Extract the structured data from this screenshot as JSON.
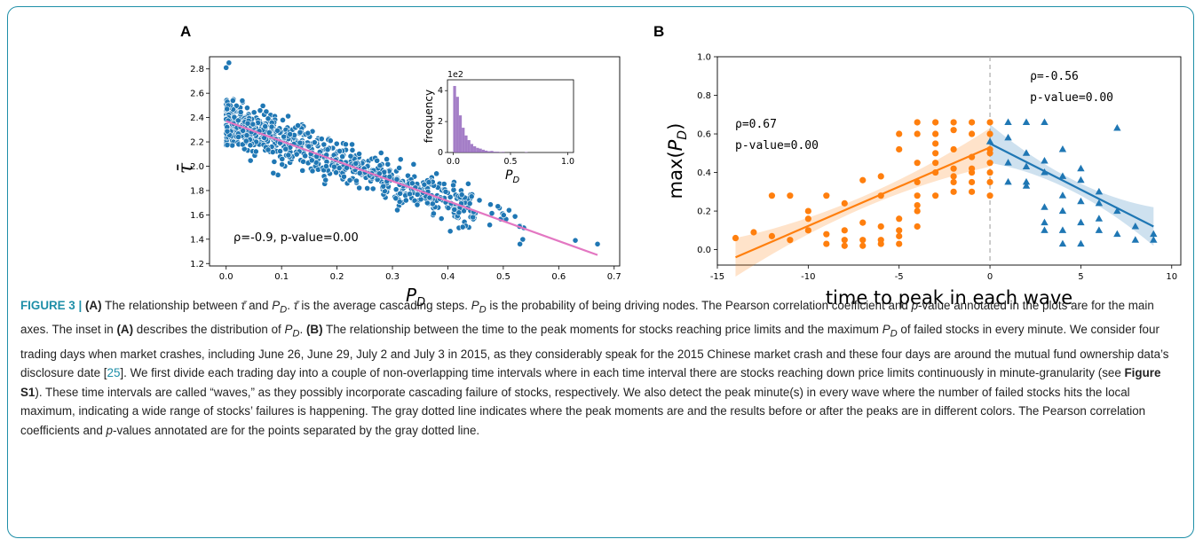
{
  "panels": {
    "a_letter": "A",
    "b_letter": "B"
  },
  "chart_data": [
    {
      "type": "scatter",
      "panel": "A",
      "xlabel": "P_D",
      "ylabel": "τ̄",
      "xlim": [
        -0.03,
        0.71
      ],
      "ylim": [
        1.18,
        2.9
      ],
      "xticks": [
        "0.0",
        "0.1",
        "0.2",
        "0.3",
        "0.4",
        "0.5",
        "0.6",
        "0.7"
      ],
      "yticks": [
        "1.2",
        "1.4",
        "1.6",
        "1.8",
        "2.0",
        "2.2",
        "2.4",
        "2.6",
        "2.8"
      ],
      "annotation": "ρ=-0.9, p-value=0.00",
      "point_color": "#1f77b4",
      "fit_color": "#e377c2",
      "fit_line": {
        "x": [
          0.0,
          0.67
        ],
        "y": [
          2.37,
          1.27
        ]
      },
      "outliers": {
        "x": [
          0.005,
          0.53,
          0.63,
          0.67,
          0.0
        ],
        "y": [
          2.85,
          1.36,
          1.39,
          1.36,
          2.81
        ]
      },
      "inset": {
        "type": "bar",
        "xlabel": "P_D",
        "ylabel": "frequency",
        "scale_label": "1e2",
        "xticks": [
          "0.0",
          "0.5",
          "1.0"
        ],
        "yticks": [
          "0",
          "2",
          "4"
        ],
        "xlim": [
          -0.05,
          1.05
        ],
        "ylim": [
          0,
          4.7
        ],
        "bar_color": "#9467bd",
        "bin_width": 0.025,
        "bin_start": 0.0,
        "values": [
          4.3,
          3.6,
          2.4,
          1.6,
          1.1,
          0.8,
          0.55,
          0.4,
          0.3,
          0.25,
          0.18,
          0.12,
          0.08,
          0.1,
          0.05,
          0.05,
          0.02,
          0.04,
          0.0,
          0.0,
          0.0,
          0.0,
          0.0,
          0.0,
          0.0,
          0.03,
          0.0,
          0.0
        ]
      }
    },
    {
      "type": "scatter",
      "panel": "B",
      "xlabel": "time to peak in each wave",
      "ylabel": "max(P_D)",
      "xlim": [
        -15,
        10.5
      ],
      "ylim": [
        -0.08,
        1.0
      ],
      "xticks": [
        "-15",
        "-10",
        "-5",
        "0",
        "5",
        "10"
      ],
      "xtick_values": [
        -15,
        -10,
        -5,
        0,
        5,
        10
      ],
      "yticks": [
        "0.0",
        "0.2",
        "0.4",
        "0.6",
        "0.8",
        "1.0"
      ],
      "ytick_values": [
        0.0,
        0.2,
        0.4,
        0.6,
        0.8,
        1.0
      ],
      "peak_line_x": 0,
      "series": [
        {
          "color": "#ff7f0e",
          "marker": "circle",
          "annotation_rho": "ρ=0.67",
          "annotation_p": "p-value=0.00",
          "fit_line": {
            "x": [
              -14,
              0
            ],
            "y": [
              -0.04,
              0.53
            ]
          },
          "x": [
            -14,
            -13,
            -12,
            -12,
            -11,
            -11,
            -10,
            -10,
            -10,
            -9,
            -9,
            -9,
            -8,
            -8,
            -8,
            -8,
            -7,
            -7,
            -7,
            -7,
            -6,
            -6,
            -6,
            -6,
            -6,
            -5,
            -5,
            -5,
            -5,
            -5,
            -5,
            -4,
            -4,
            -4,
            -4,
            -4,
            -4,
            -4,
            -4,
            -3,
            -3,
            -3,
            -3,
            -3,
            -3,
            -3,
            -2,
            -2,
            -2,
            -2,
            -2,
            -2,
            -2,
            -1,
            -1,
            -1,
            -1,
            -1,
            -1,
            -1,
            0,
            0,
            0,
            0,
            0,
            0,
            0,
            0
          ],
          "y": [
            0.06,
            0.09,
            0.28,
            0.07,
            0.28,
            0.05,
            0.16,
            0.1,
            0.2,
            0.03,
            0.08,
            0.28,
            0.1,
            0.02,
            0.05,
            0.24,
            0.02,
            0.36,
            0.05,
            0.14,
            0.03,
            0.12,
            0.05,
            0.38,
            0.28,
            0.52,
            0.6,
            0.07,
            0.03,
            0.16,
            0.1,
            0.66,
            0.6,
            0.45,
            0.35,
            0.2,
            0.12,
            0.23,
            0.28,
            0.66,
            0.6,
            0.55,
            0.45,
            0.4,
            0.28,
            0.5,
            0.66,
            0.62,
            0.52,
            0.42,
            0.38,
            0.3,
            0.35,
            0.66,
            0.6,
            0.48,
            0.4,
            0.3,
            0.35,
            0.42,
            0.66,
            0.6,
            0.5,
            0.45,
            0.35,
            0.28,
            0.4,
            0.52
          ]
        },
        {
          "color": "#1f77b4",
          "marker": "triangle",
          "annotation_rho": "ρ=-0.56",
          "annotation_p": "p-value=0.00",
          "fit_line": {
            "x": [
              0,
              9
            ],
            "y": [
              0.55,
              0.12
            ]
          },
          "x": [
            0,
            1,
            1,
            1,
            1,
            2,
            2,
            2,
            2,
            2,
            3,
            3,
            3,
            3,
            3,
            3,
            4,
            4,
            4,
            4,
            4,
            4,
            5,
            5,
            5,
            5,
            5,
            6,
            6,
            6,
            6,
            7,
            7,
            7,
            8,
            8,
            9,
            9
          ],
          "y": [
            0.56,
            0.66,
            0.58,
            0.45,
            0.35,
            0.66,
            0.5,
            0.35,
            0.33,
            0.43,
            0.66,
            0.46,
            0.4,
            0.22,
            0.14,
            0.1,
            0.52,
            0.38,
            0.28,
            0.2,
            0.1,
            0.03,
            0.42,
            0.36,
            0.25,
            0.14,
            0.03,
            0.3,
            0.24,
            0.16,
            0.1,
            0.63,
            0.2,
            0.08,
            0.12,
            0.05,
            0.08,
            0.05
          ]
        }
      ]
    }
  ],
  "caption": {
    "fig_label": "FIGURE 3 | ",
    "a1": "(A)",
    "t1": " The relationship between ",
    "tau": "τ̄",
    "t2": " and ",
    "pd1": "P",
    "sub1": "D",
    "t3": ". ",
    "tau2": "τ̄",
    "t4": " is the average cascading steps. ",
    "pd2": "P",
    "sub2": "D",
    "t5": " is the probability of being driving nodes. The Pearson correlation coefficient and ",
    "p1": "p",
    "t6": "-value annotated in the plots are for the main axes. The inset in ",
    "a2": "(A)",
    "t7": " describes the distribution of ",
    "pd3": "P",
    "sub3": "D",
    "t8": ". ",
    "b1": "(B)",
    "t9": " The relationship between the time to the peak moments for stocks reaching price limits and the maximum ",
    "pd4": "P",
    "sub4": "D",
    "t10": " of failed stocks in every minute. We consider four trading days when market crashes, including June 26, June 29, July 2 and July 3 in 2015, as they considerably speak for the 2015 Chinese market crash and these four days are around the mutual fund ownership data’s disclosure date [",
    "ref": "25",
    "t11": "]. We first divide each trading day into a couple of non-overlapping time intervals where in each time interval there are stocks reaching down price limits continuously in minute-granularity (see ",
    "figs1": "Figure S1",
    "t12": "). These time intervals are called “waves,” as they possibly incorporate cascading failure of stocks, respectively. We also detect the peak minute(s) in every wave where the number of failed stocks hits the local maximum, indicating a wide range of stocks’ failures is happening. The gray dotted line indicates where the peak moments are and the results before or after the peaks are in different colors. The Pearson correlation coefficients and ",
    "p2": "p",
    "t13": "-values annotated are for the points separated by the gray dotted line."
  }
}
